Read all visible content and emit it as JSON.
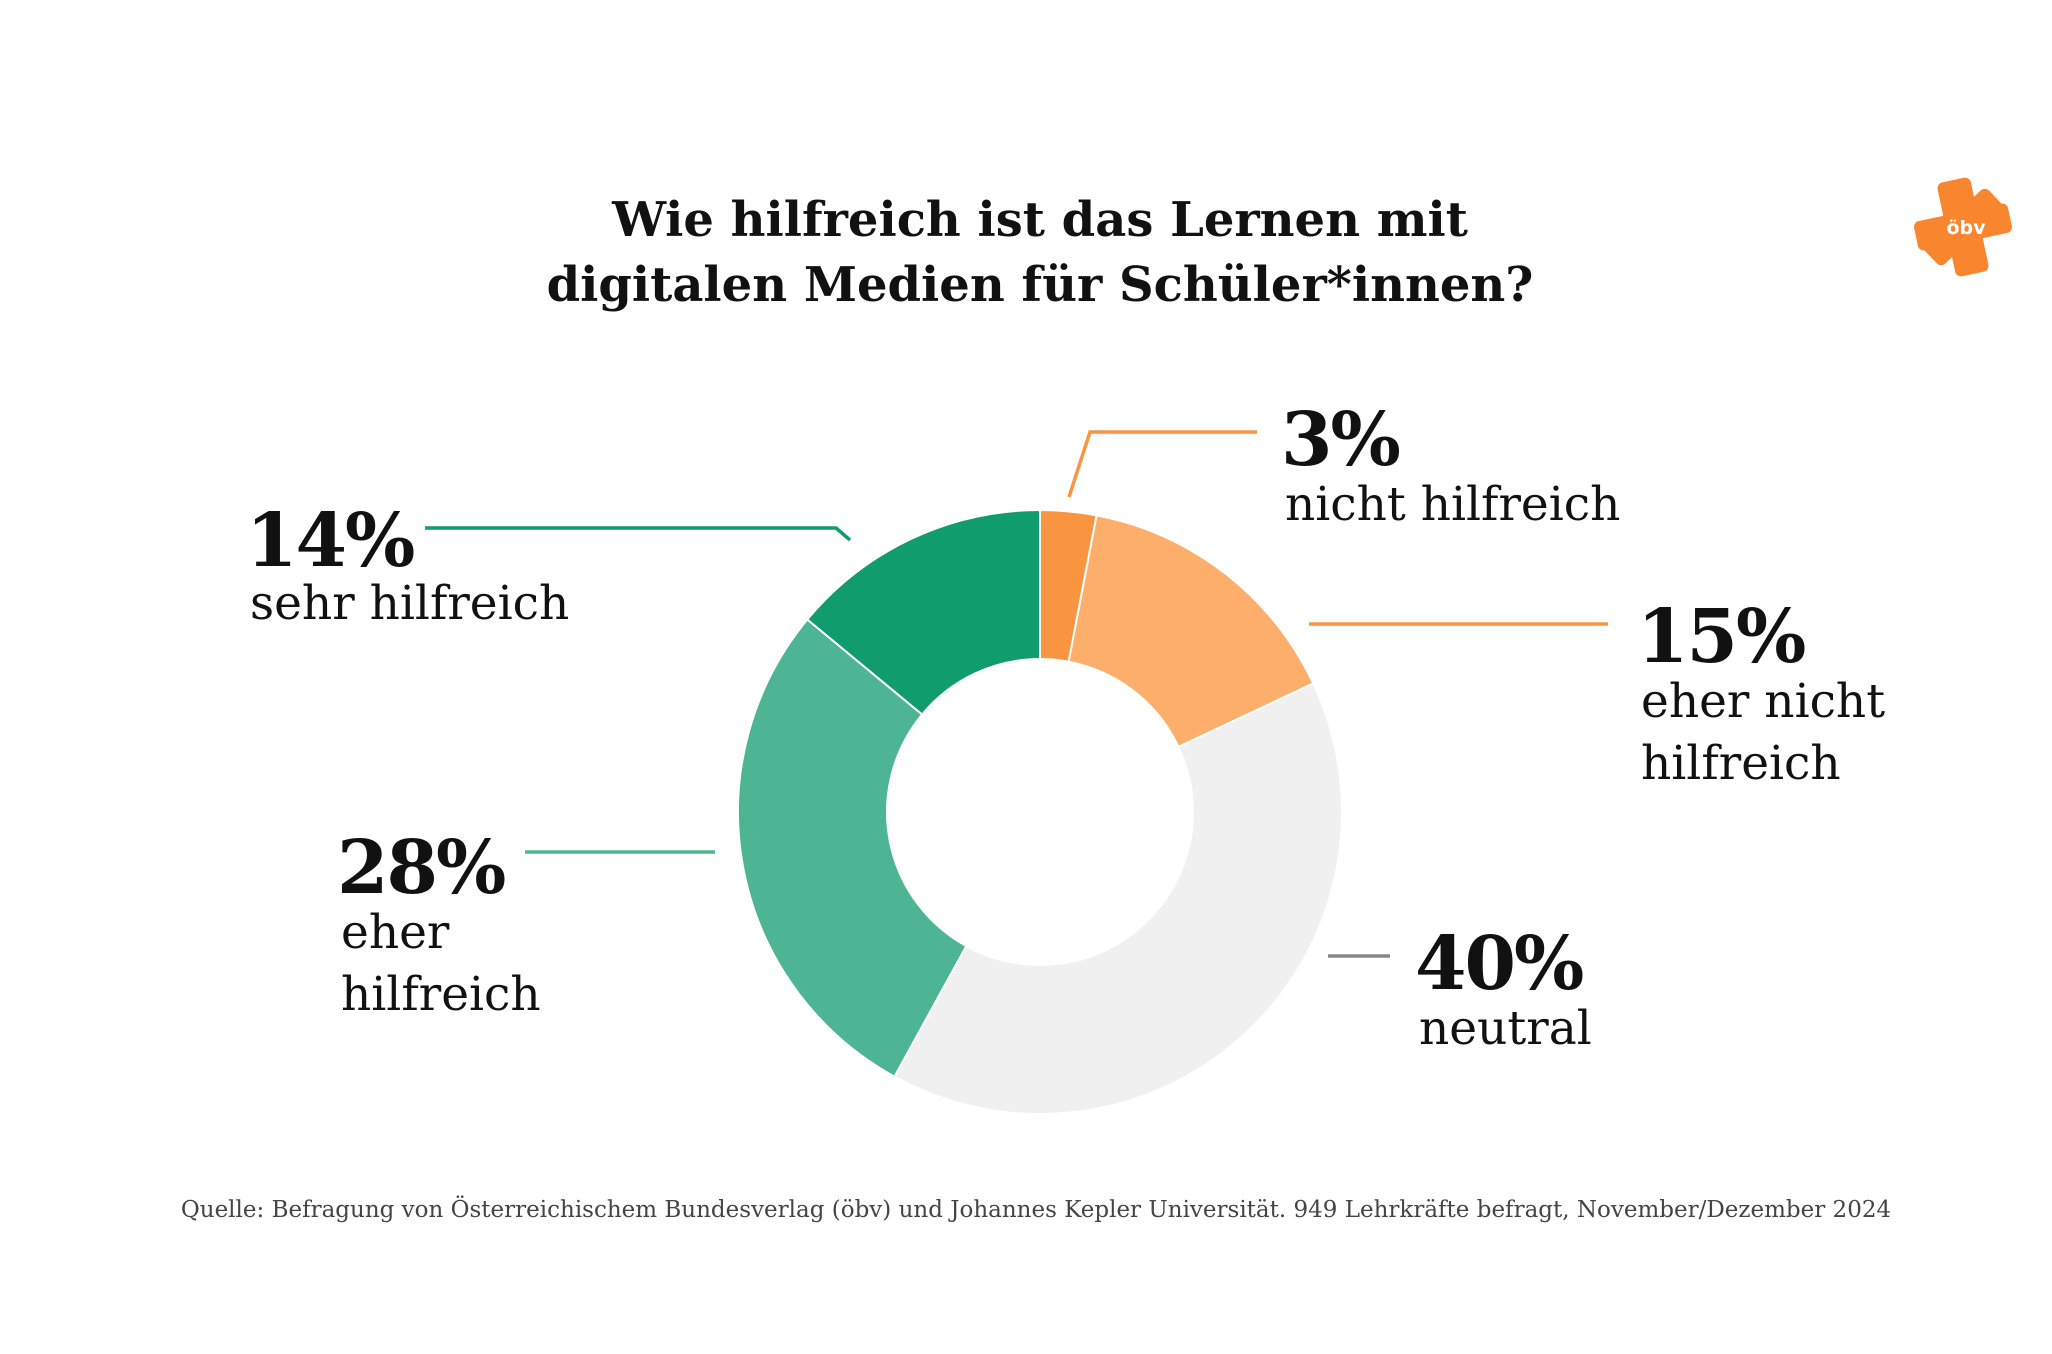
{
  "title": [
    "Wie hilfreich ist das Lernen mit",
    "digitalen Medien für Schüler*innen?"
  ],
  "logo": {
    "text": "öbv",
    "color": "#F7862F"
  },
  "source": "Quelle: Befragung von Österreichischem Bundesverlag (öbv) und Johannes Kepler Universität. 949 Lehrkräfte befragt, November/Dezember 2024",
  "chart_data": {
    "type": "pie",
    "donut": true,
    "start": "top",
    "direction": "clockwise",
    "slices": [
      {
        "key": "nicht-hilfreich",
        "value": 3,
        "pct_label": "3%",
        "label": [
          "nicht hilfreich"
        ],
        "color": "#F99540",
        "line_color": "#F99540"
      },
      {
        "key": "eher-nicht-hilfreich",
        "value": 15,
        "pct_label": "15%",
        "label": [
          "eher nicht",
          "hilfreich"
        ],
        "color": "#FDAE6B",
        "line_color": "#F99540"
      },
      {
        "key": "neutral",
        "value": 40,
        "pct_label": "40%",
        "label": [
          "neutral"
        ],
        "color": "#F0F0F0",
        "line_color": "#888888"
      },
      {
        "key": "eher-hilfreich",
        "value": 28,
        "pct_label": "28%",
        "label": [
          "eher",
          "hilfreich"
        ],
        "color": "#4DB593",
        "line_color": "#4DB593"
      },
      {
        "key": "sehr-hilfreich",
        "value": 14,
        "pct_label": "14%",
        "label": [
          "sehr hilfreich"
        ],
        "color": "#119C6E",
        "line_color": "#119C6E"
      }
    ]
  }
}
